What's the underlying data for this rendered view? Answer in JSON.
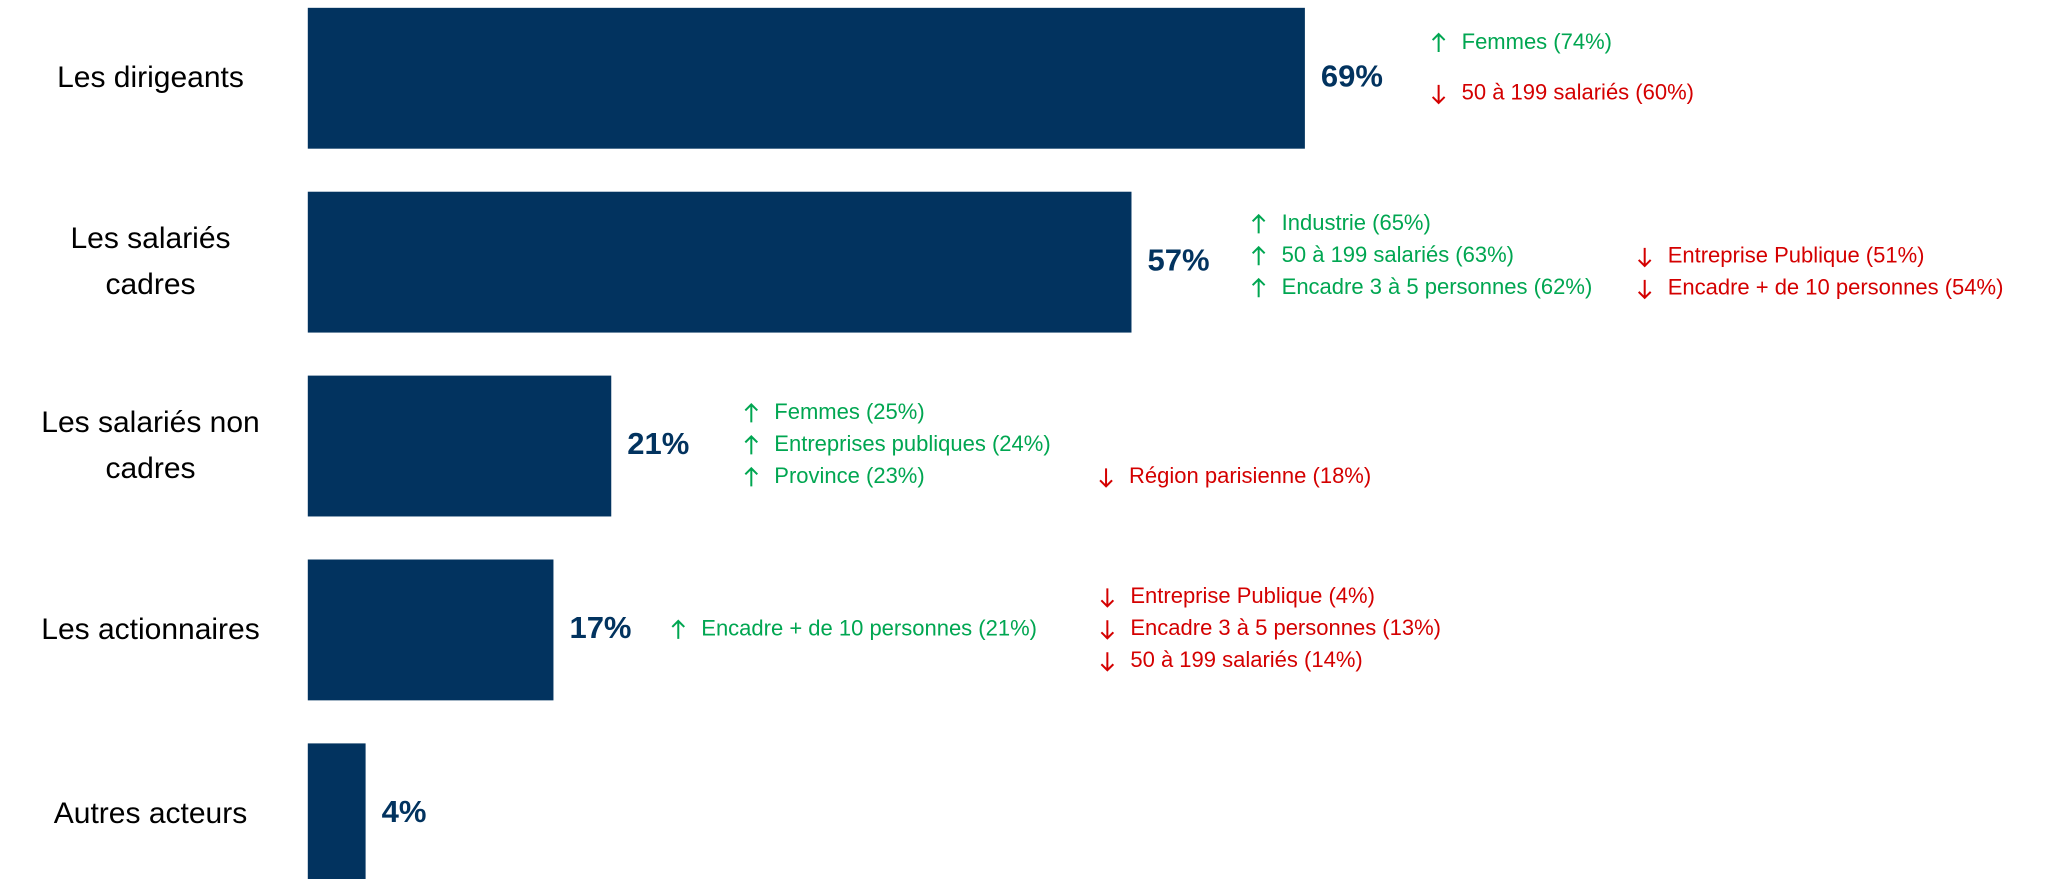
{
  "chart_data": {
    "type": "bar",
    "orientation": "horizontal",
    "color": "#02335f",
    "categories": [
      "Les dirigeants",
      "Les salariés cadres",
      "Les salariés non cadres",
      "Les actionnaires",
      "Autres acteurs"
    ],
    "values": [
      69,
      57,
      21,
      17,
      4
    ],
    "value_labels": [
      "69%",
      "57%",
      "21%",
      "17%",
      "4%"
    ],
    "annotations": [
      {
        "up": [
          "Femmes (74%)"
        ],
        "down": [
          "50 à 199 salariés (60%)"
        ]
      },
      {
        "up": [
          "Industrie (65%)",
          "50 à 199 salariés (63%)",
          "Encadre 3 à 5 personnes (62%)"
        ],
        "down": [
          "Entreprise Publique (51%)",
          "Encadre + de 10 personnes (54%)"
        ]
      },
      {
        "up": [
          "Femmes (25%)",
          "Entreprises publiques (24%)",
          "Province (23%)"
        ],
        "down": [
          "Région parisienne (18%)"
        ]
      },
      {
        "up": [
          "Encadre + de 10 personnes (21%)"
        ],
        "down": [
          "Entreprise Publique (4%)",
          "Encadre 3 à 5 personnes (13%)",
          "50 à 199 salariés (14%)"
        ]
      },
      {
        "up": [],
        "down": []
      }
    ],
    "up_color": "#00a651",
    "down_color": "#d40000"
  }
}
